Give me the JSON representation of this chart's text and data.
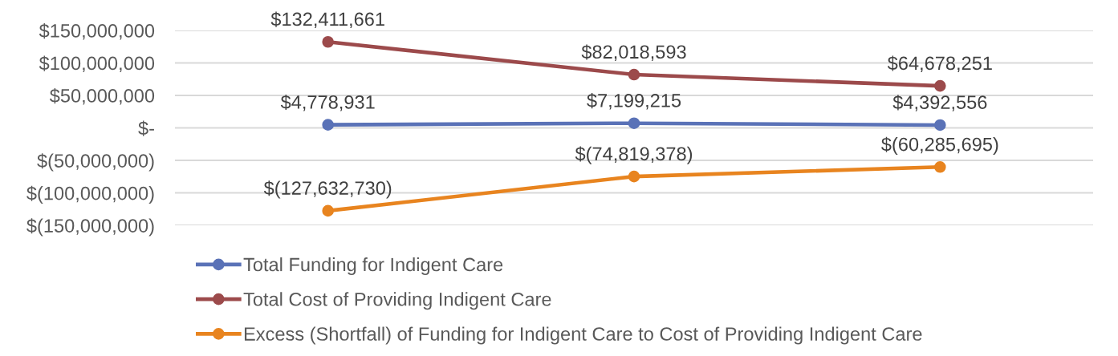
{
  "chart_data": {
    "type": "line",
    "categories": [
      null,
      null,
      null
    ],
    "series": [
      {
        "name": "Total Funding for Indigent Care",
        "color": "#5a72b7",
        "values": [
          4778931,
          7199215,
          4392556
        ],
        "value_labels": [
          "$4,778,931",
          "$7,199,215",
          "$4,392,556"
        ]
      },
      {
        "name": "Total Cost of Providing Indigent Care",
        "color": "#9c4a4b",
        "values": [
          132411661,
          82018593,
          64678251
        ],
        "value_labels": [
          "$132,411,661",
          "$82,018,593",
          "$64,678,251"
        ]
      },
      {
        "name": "Excess (Shortfall) of Funding for Indigent Care to Cost of Providing Indigent Care",
        "color": "#e8841f",
        "values": [
          -127632730,
          -74819378,
          -60285695
        ],
        "value_labels": [
          "$(127,632,730)",
          "$(74,819,378)",
          "$(60,285,695)"
        ]
      }
    ],
    "ylim": [
      -150000000,
      150000000
    ],
    "yticks": [
      {
        "value": -150000000,
        "label": "$(150,000,000)"
      },
      {
        "value": -100000000,
        "label": "$(100,000,000)"
      },
      {
        "value": -50000000,
        "label": "$(50,000,000)"
      },
      {
        "value": 0,
        "label": "$-"
      },
      {
        "value": 50000000,
        "label": "$50,000,000"
      },
      {
        "value": 100000000,
        "label": "$100,000,000"
      },
      {
        "value": 150000000,
        "label": "$150,000,000"
      }
    ],
    "grid": "y",
    "legend": "bottom",
    "marker": "circle",
    "line_style": "solid",
    "tick_labels": "y"
  }
}
